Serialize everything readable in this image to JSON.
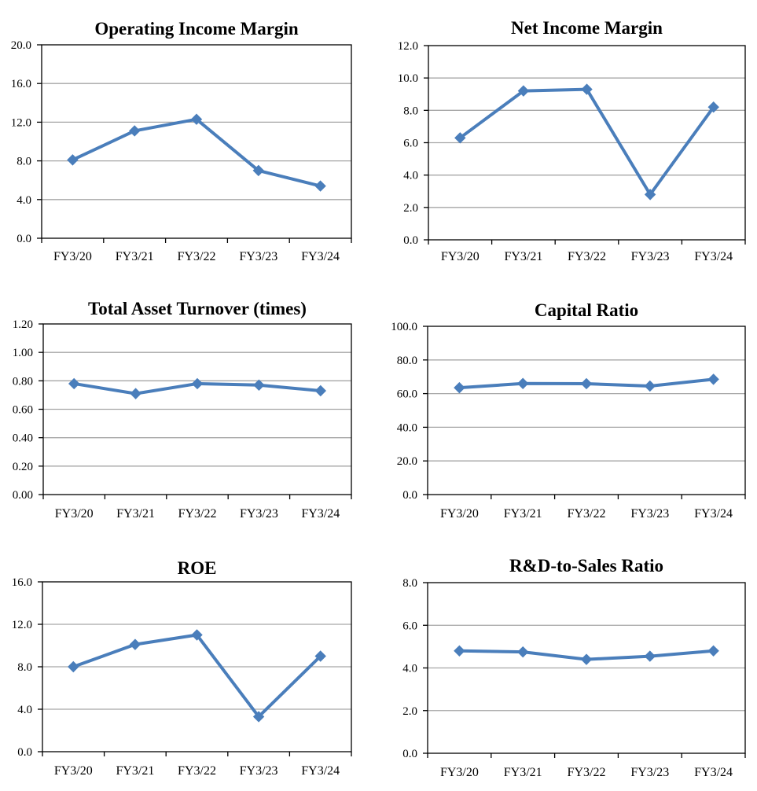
{
  "line_color": "#4A7EBB",
  "grid_color": "#A6A6A6",
  "chart_data": [
    {
      "type": "line",
      "title": "Operating Income Margin",
      "categories": [
        "FY3/20",
        "FY3/21",
        "FY3/22",
        "FY3/23",
        "FY3/24"
      ],
      "values": [
        8.1,
        11.1,
        12.3,
        7.0,
        5.4
      ],
      "ylim": [
        0,
        20
      ],
      "yticks": [
        "0.0",
        "4.0",
        "8.0",
        "12.0",
        "16.0",
        "20.0"
      ],
      "grid": true
    },
    {
      "type": "line",
      "title": "Net Income Margin",
      "categories": [
        "FY3/20",
        "FY3/21",
        "FY3/22",
        "FY3/23",
        "FY3/24"
      ],
      "values": [
        6.3,
        9.2,
        9.3,
        2.8,
        8.2
      ],
      "ylim": [
        0,
        12
      ],
      "yticks": [
        "0.0",
        "2.0",
        "4.0",
        "6.0",
        "8.0",
        "10.0",
        "12.0"
      ],
      "grid": true
    },
    {
      "type": "line",
      "title": "Total Asset Turnover (times)",
      "categories": [
        "FY3/20",
        "FY3/21",
        "FY3/22",
        "FY3/23",
        "FY3/24"
      ],
      "values": [
        0.78,
        0.71,
        0.78,
        0.77,
        0.73
      ],
      "ylim": [
        0,
        1.2
      ],
      "yticks": [
        "0.00",
        "0.20",
        "0.40",
        "0.60",
        "0.80",
        "1.00",
        "1.20"
      ],
      "grid": true
    },
    {
      "type": "line",
      "title": "Capital Ratio",
      "categories": [
        "FY3/20",
        "FY3/21",
        "FY3/22",
        "FY3/23",
        "FY3/24"
      ],
      "values": [
        63.5,
        66.0,
        65.9,
        64.5,
        68.5
      ],
      "ylim": [
        0,
        100
      ],
      "yticks": [
        "0.0",
        "20.0",
        "40.0",
        "60.0",
        "80.0",
        "100.0"
      ],
      "grid": true
    },
    {
      "type": "line",
      "title": "ROE",
      "categories": [
        "FY3/20",
        "FY3/21",
        "FY3/22",
        "FY3/23",
        "FY3/24"
      ],
      "values": [
        8.0,
        10.1,
        11.0,
        3.3,
        9.0
      ],
      "ylim": [
        0,
        16
      ],
      "yticks": [
        "0.0",
        "4.0",
        "8.0",
        "12.0",
        "16.0"
      ],
      "grid": true
    },
    {
      "type": "line",
      "title": "R&D-to-Sales Ratio",
      "categories": [
        "FY3/20",
        "FY3/21",
        "FY3/22",
        "FY3/23",
        "FY3/24"
      ],
      "values": [
        4.8,
        4.75,
        4.4,
        4.55,
        4.8
      ],
      "ylim": [
        0,
        8
      ],
      "yticks": [
        "0.0",
        "2.0",
        "4.0",
        "6.0",
        "8.0"
      ],
      "grid": true
    }
  ]
}
